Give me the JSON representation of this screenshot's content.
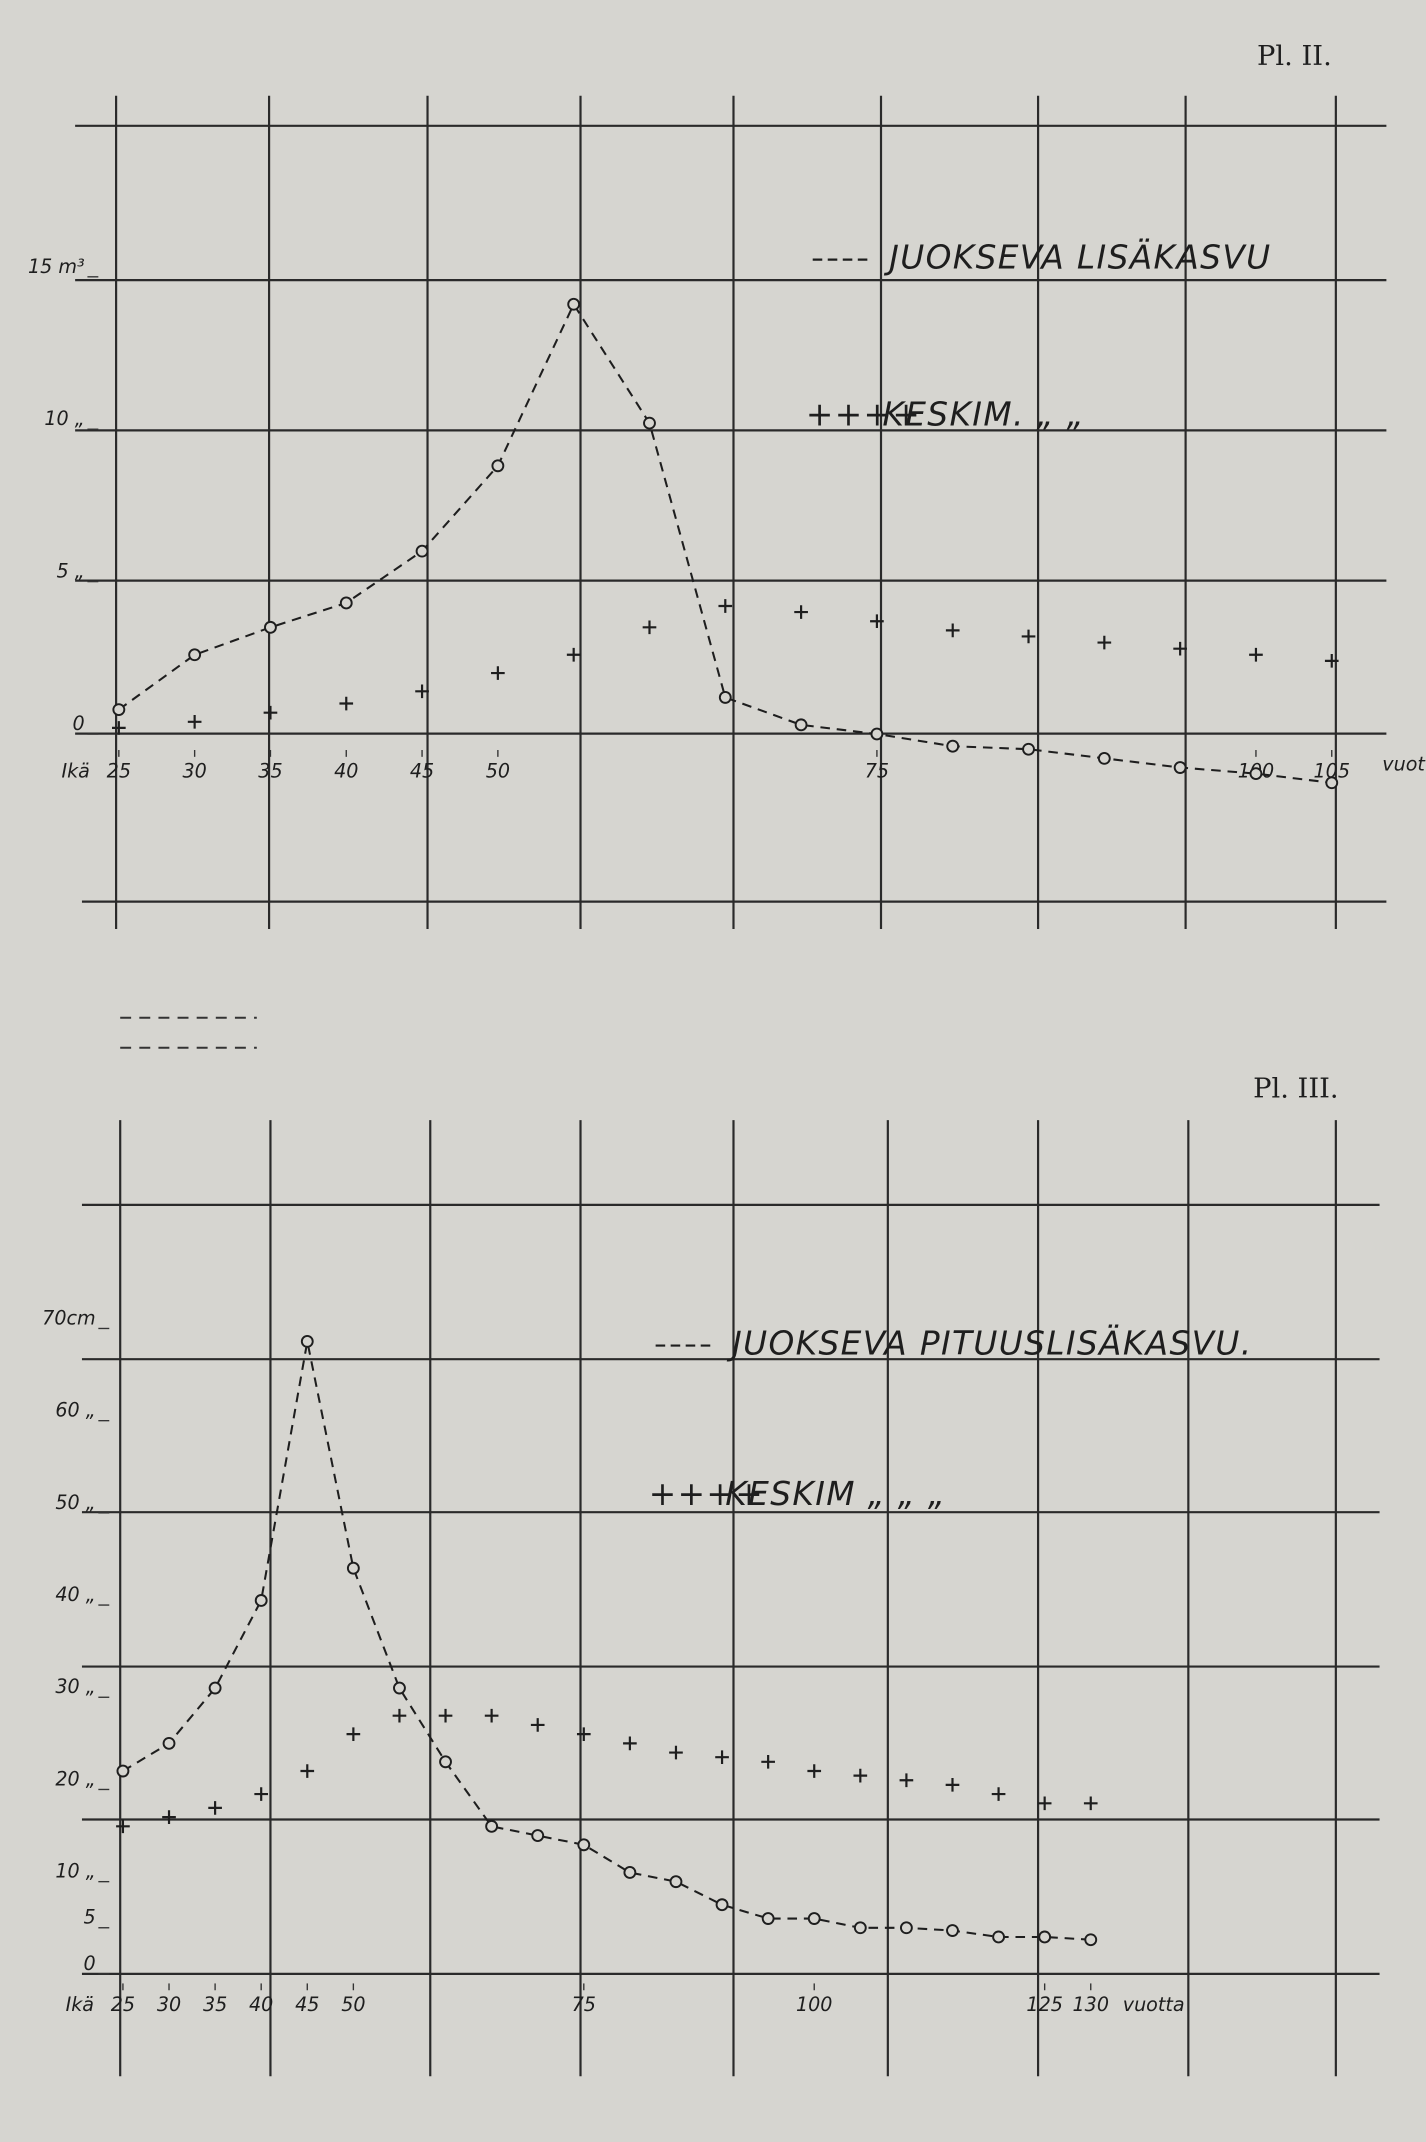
{
  "chart_data": [
    {
      "type": "line",
      "title": "Pl. II.",
      "xlabel_left": "Ikä",
      "xlabel": "vuotta",
      "x": [
        25,
        30,
        35,
        40,
        45,
        50,
        55,
        60,
        65,
        70,
        75,
        80,
        85,
        90,
        95,
        100,
        105
      ],
      "xlim": [
        25,
        105
      ],
      "xticks": [
        25,
        30,
        35,
        40,
        45,
        50,
        75,
        100,
        105
      ],
      "ylim": [
        -5.5,
        20
      ],
      "yticks": [
        0,
        {
          "value": 5,
          "label": "5 „"
        },
        {
          "value": 10,
          "label": "10 „"
        },
        {
          "value": 15,
          "label": "15 m³"
        }
      ],
      "series": [
        {
          "name": "JUOKSEVA LISÄKASVU",
          "color": "#1e1e1e",
          "style": "dashed",
          "marker": "circle",
          "values": [
            0.8,
            2.6,
            3.5,
            4.3,
            6.0,
            8.8,
            14.1,
            10.2,
            1.2,
            0.3,
            0,
            -0.4,
            -0.5,
            -0.8,
            -1.1,
            -1.3,
            -1.6
          ]
        },
        {
          "name": "KESKIM. „ „",
          "color": "#1e1e1e",
          "style": "plus",
          "marker": "plus",
          "values": [
            0.2,
            0.4,
            0.7,
            1.0,
            1.4,
            2.0,
            2.6,
            3.5,
            4.2,
            4.0,
            3.7,
            3.4,
            3.2,
            3.0,
            2.8,
            2.6,
            2.4
          ]
        }
      ]
    },
    {
      "type": "line",
      "title": "Pl. III.",
      "xlabel_left": "Ikä",
      "xlabel": "vuotta",
      "x": [
        25,
        30,
        35,
        40,
        45,
        50,
        55,
        60,
        65,
        70,
        75,
        80,
        85,
        90,
        95,
        100,
        105,
        110,
        115,
        120,
        125,
        130
      ],
      "xlim": [
        25,
        160
      ],
      "xticks": [
        25,
        30,
        35,
        40,
        45,
        50,
        75,
        100,
        125,
        130
      ],
      "ylim": [
        0,
        92
      ],
      "yticks": [
        0,
        5,
        {
          "value": 10,
          "label": "10 „"
        },
        {
          "value": 20,
          "label": "20 „"
        },
        {
          "value": 30,
          "label": "30 „"
        },
        {
          "value": 40,
          "label": "40 „"
        },
        {
          "value": 50,
          "label": "50 „"
        },
        {
          "value": 60,
          "label": "60 „"
        },
        {
          "value": 70,
          "label": "70cm"
        }
      ],
      "series": [
        {
          "name": "JUOKSEVA PITUUSLISÄKASVU.",
          "color": "#1e1e1e",
          "style": "dashed",
          "marker": "circle",
          "values": [
            22,
            25,
            31,
            40.5,
            68.6,
            44,
            31,
            23,
            16,
            15,
            14,
            11,
            10,
            7.5,
            6,
            6,
            5,
            5,
            4.7,
            4,
            4,
            3.7
          ]
        },
        {
          "name": "KESKIM „ „ „",
          "color": "#1e1e1e",
          "style": "plus",
          "marker": "plus",
          "values": [
            16,
            17,
            18,
            19.5,
            22,
            26,
            28,
            28,
            28,
            27,
            26,
            25,
            24,
            23.5,
            23,
            22,
            21.5,
            21,
            20.5,
            19.5,
            18.5,
            18.5
          ]
        }
      ]
    }
  ]
}
